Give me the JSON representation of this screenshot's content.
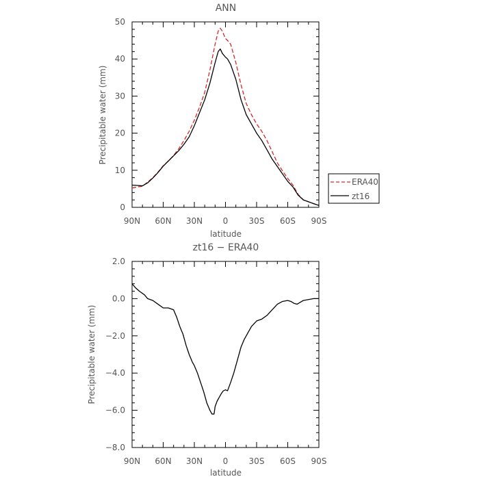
{
  "chart_data": [
    {
      "type": "line",
      "title": "ANN",
      "xlabel": "latitude",
      "ylabel": "Precipitable water (mm)",
      "xlim": [
        90,
        -90
      ],
      "ylim": [
        0,
        50
      ],
      "x_ticks": [
        90,
        60,
        30,
        0,
        -30,
        -60,
        -90
      ],
      "x_tick_labels": [
        "90N",
        "60N",
        "30N",
        "0",
        "30S",
        "60S",
        "90S"
      ],
      "y_ticks": [
        0,
        10,
        20,
        30,
        40,
        50
      ],
      "y_tick_labels": [
        "0",
        "10",
        "20",
        "30",
        "40",
        "50"
      ],
      "legend": {
        "placement": "right"
      },
      "series": [
        {
          "name": "ERA40",
          "color": "#d62728",
          "style": "dashed",
          "x": [
            90,
            85,
            80,
            75,
            70,
            65,
            60,
            55,
            50,
            45,
            40,
            35,
            30,
            25,
            20,
            15,
            10,
            7,
            5,
            3,
            0,
            -2,
            -5,
            -10,
            -15,
            -20,
            -25,
            -30,
            -35,
            -40,
            -45,
            -50,
            -55,
            -60,
            -65,
            -70,
            -75,
            -80,
            -85,
            -90
          ],
          "y": [
            5.2,
            5.5,
            5.7,
            6.8,
            8.0,
            9.5,
            11.2,
            12.5,
            14.0,
            15.8,
            18.0,
            20.5,
            23.5,
            27.0,
            31.0,
            37.0,
            44.0,
            47.5,
            48.3,
            47.5,
            45.5,
            45.0,
            44.0,
            39.0,
            33.0,
            28.0,
            25.0,
            22.5,
            20.5,
            18.0,
            15.0,
            12.0,
            9.8,
            7.8,
            6.0,
            3.5,
            2.0,
            1.5,
            1.0,
            0.5
          ]
        },
        {
          "name": "zt16",
          "color": "#000000",
          "style": "solid",
          "x": [
            90,
            85,
            80,
            75,
            70,
            65,
            60,
            55,
            50,
            45,
            40,
            35,
            30,
            25,
            20,
            15,
            10,
            7,
            5,
            3,
            0,
            -2,
            -5,
            -10,
            -15,
            -20,
            -25,
            -30,
            -35,
            -40,
            -45,
            -50,
            -55,
            -60,
            -65,
            -70,
            -75,
            -80,
            -85,
            -90
          ],
          "y": [
            6.0,
            5.9,
            5.8,
            6.6,
            7.9,
            9.4,
            11.1,
            12.5,
            13.9,
            15.3,
            17.0,
            19.0,
            22.0,
            25.5,
            29.0,
            33.5,
            39.0,
            42.0,
            42.7,
            41.5,
            40.5,
            40.0,
            38.5,
            34.5,
            29.0,
            25.0,
            22.5,
            20.0,
            18.0,
            15.5,
            13.0,
            11.0,
            9.0,
            7.0,
            5.5,
            3.3,
            2.0,
            1.5,
            1.0,
            0.5
          ]
        }
      ]
    },
    {
      "type": "line",
      "title": "zt16 − ERA40",
      "xlabel": "latitude",
      "ylabel": "Precipitable water (mm)",
      "xlim": [
        90,
        -90
      ],
      "ylim": [
        -8,
        2
      ],
      "x_ticks": [
        90,
        60,
        30,
        0,
        -30,
        -60,
        -90
      ],
      "x_tick_labels": [
        "90N",
        "60N",
        "30N",
        "0",
        "30S",
        "60S",
        "90S"
      ],
      "y_ticks": [
        2,
        0,
        -2,
        -4,
        -6,
        -8
      ],
      "y_tick_labels": [
        "2.0",
        "0.0",
        "−2.0",
        "−4.0",
        "−6.0",
        "−8.0"
      ],
      "series": [
        {
          "name": "",
          "color": "#000000",
          "style": "solid",
          "x": [
            90,
            87,
            83,
            78,
            75,
            70,
            65,
            60,
            55,
            50,
            47,
            44,
            41,
            38,
            35,
            32,
            30,
            27,
            24,
            21,
            18,
            15,
            13,
            11,
            10,
            8,
            6,
            4,
            2,
            0,
            -2,
            -5,
            -8,
            -12,
            -15,
            -18,
            -20,
            -25,
            -30,
            -35,
            -40,
            -45,
            -50,
            -55,
            -60,
            -63,
            -66,
            -69,
            -72,
            -75,
            -80,
            -85,
            -90
          ],
          "y": [
            0.8,
            0.6,
            0.4,
            0.2,
            0.0,
            -0.1,
            -0.3,
            -0.5,
            -0.5,
            -0.6,
            -1.0,
            -1.5,
            -1.9,
            -2.5,
            -3.0,
            -3.4,
            -3.6,
            -4.0,
            -4.5,
            -5.0,
            -5.6,
            -6.0,
            -6.2,
            -6.2,
            -5.8,
            -5.5,
            -5.3,
            -5.1,
            -4.95,
            -4.9,
            -4.95,
            -4.5,
            -4.0,
            -3.2,
            -2.6,
            -2.2,
            -2.0,
            -1.5,
            -1.2,
            -1.1,
            -0.9,
            -0.6,
            -0.3,
            -0.15,
            -0.1,
            -0.15,
            -0.25,
            -0.3,
            -0.2,
            -0.1,
            -0.05,
            0.0,
            0.0
          ]
        }
      ]
    }
  ]
}
